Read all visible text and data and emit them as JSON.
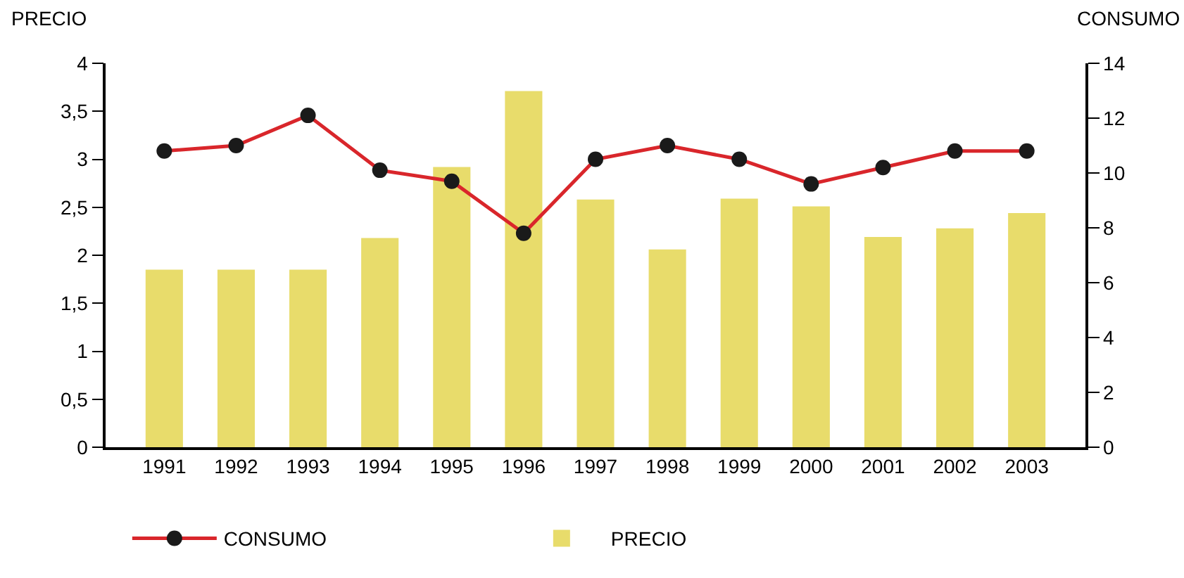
{
  "chart_data": {
    "type": "bar",
    "ylabel": "PRECIO",
    "y2label": "CONSUMO",
    "categories": [
      "1991",
      "1992",
      "1993",
      "1994",
      "1995",
      "1996",
      "1997",
      "1998",
      "1999",
      "2000",
      "2001",
      "2002",
      "2003"
    ],
    "series": [
      {
        "name": "CONSUMO",
        "type": "line",
        "axis": "y2",
        "color": "#d9262b",
        "marker": "circle",
        "values": [
          10.8,
          11.0,
          12.1,
          10.1,
          9.7,
          7.8,
          10.5,
          11.0,
          10.5,
          9.6,
          10.2,
          10.8,
          10.8
        ]
      },
      {
        "name": "PRECIO",
        "color": "#e8dc6b",
        "values": [
          1.85,
          1.85,
          1.85,
          2.18,
          2.92,
          3.71,
          2.58,
          2.06,
          2.59,
          2.51,
          2.19,
          2.28,
          2.44
        ]
      }
    ],
    "ylim": [
      0,
      4
    ],
    "yticks": [
      0,
      {
        "value": 0.5,
        "label": "0,5"
      },
      1,
      {
        "value": 1.5,
        "label": "1,5"
      },
      2,
      {
        "value": 2.5,
        "label": "2,5"
      },
      3,
      {
        "value": 3.5,
        "label": "3,5"
      },
      4
    ],
    "y2lim": [
      0,
      14
    ],
    "y2ticks": [
      0,
      2,
      4,
      6,
      8,
      10,
      12,
      14
    ],
    "legend": "bottom"
  }
}
